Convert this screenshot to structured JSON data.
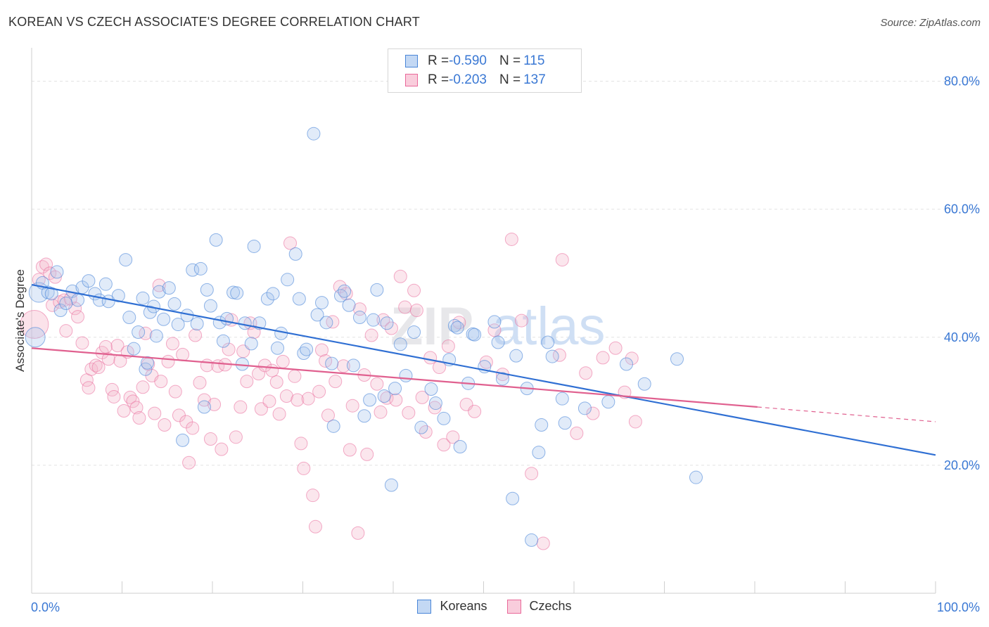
{
  "header": {
    "title": "KOREAN VS CZECH ASSOCIATE'S DEGREE CORRELATION CHART",
    "source": "Source: ZipAtlas.com"
  },
  "colors": {
    "korean": "#4a86d8",
    "korean_fill": "#a9c6ee",
    "czech": "#e9699a",
    "czech_fill": "#f4b6cb",
    "tick": "#3a78d4"
  },
  "legend": {
    "rows": [
      {
        "r_label": "R = ",
        "r_value": "-0.590",
        "n_label": "N = ",
        "n_value": "115"
      },
      {
        "r_label": "R = ",
        "r_value": "-0.203",
        "n_label": "N = ",
        "n_value": "137"
      }
    ]
  },
  "bottom_legend": {
    "koreans": "Koreans",
    "czechs": "Czechs"
  },
  "watermark": {
    "zip": "ZIP",
    "atlas": "atlas"
  },
  "chart_data": {
    "type": "scatter",
    "xlabel": "",
    "ylabel": "Associate's Degree",
    "xlim": [
      0,
      100
    ],
    "ylim": [
      0,
      85
    ],
    "x_tick_labels": [
      "0.0%",
      "100.0%"
    ],
    "y_ticks": [
      20,
      40,
      60,
      80
    ],
    "y_tick_labels": [
      "20.0%",
      "40.0%",
      "60.0%",
      "80.0%"
    ],
    "grid": true,
    "series": [
      {
        "name": "Koreans",
        "trend": {
          "x": [
            0,
            100
          ],
          "y": [
            48.2,
            21.6
          ]
        },
        "points": [
          [
            0.4,
            40
          ],
          [
            0.8,
            47
          ],
          [
            1.2,
            48.5
          ],
          [
            1.8,
            47
          ],
          [
            2.2,
            46.8
          ],
          [
            2.8,
            50.2
          ],
          [
            3.2,
            44.2
          ],
          [
            3.8,
            45.3
          ],
          [
            4.5,
            47.2
          ],
          [
            5.1,
            45.8
          ],
          [
            5.6,
            47.8
          ],
          [
            6.3,
            48.8
          ],
          [
            7,
            46.8
          ],
          [
            7.5,
            45.8
          ],
          [
            8.2,
            48.3
          ],
          [
            8.5,
            45.6
          ],
          [
            9.6,
            46.5
          ],
          [
            10.4,
            52.1
          ],
          [
            10.8,
            43.1
          ],
          [
            11.3,
            38.2
          ],
          [
            11.8,
            40.8
          ],
          [
            12.3,
            46.1
          ],
          [
            12.6,
            35
          ],
          [
            12.8,
            36
          ],
          [
            13.1,
            43.9
          ],
          [
            13.5,
            44.8
          ],
          [
            13.8,
            40.2
          ],
          [
            14.1,
            47.1
          ],
          [
            14.6,
            42.8
          ],
          [
            15.2,
            47.7
          ],
          [
            15.8,
            45.2
          ],
          [
            16.2,
            42
          ],
          [
            16.7,
            23.9
          ],
          [
            17.2,
            43.4
          ],
          [
            17.8,
            50.5
          ],
          [
            18.3,
            42.1
          ],
          [
            18.7,
            50.7
          ],
          [
            19.1,
            29.1
          ],
          [
            19.4,
            47.4
          ],
          [
            19.8,
            44.9
          ],
          [
            20.4,
            55.2
          ],
          [
            20.8,
            42.3
          ],
          [
            21.2,
            39.4
          ],
          [
            21.6,
            42.9
          ],
          [
            22.3,
            47
          ],
          [
            22.7,
            46.9
          ],
          [
            23.3,
            35.8
          ],
          [
            23.6,
            42.2
          ],
          [
            24.3,
            39
          ],
          [
            24.6,
            54.2
          ],
          [
            25.2,
            42.2
          ],
          [
            26.1,
            46
          ],
          [
            26.7,
            46.8
          ],
          [
            27.2,
            38.3
          ],
          [
            27.6,
            40.6
          ],
          [
            28.3,
            49
          ],
          [
            29.2,
            53
          ],
          [
            29.6,
            46
          ],
          [
            30.1,
            37.5
          ],
          [
            30.4,
            38.1
          ],
          [
            31.2,
            71.8
          ],
          [
            31.6,
            43.5
          ],
          [
            32.1,
            45.4
          ],
          [
            32.6,
            42.3
          ],
          [
            33.2,
            35.9
          ],
          [
            33.4,
            26.1
          ],
          [
            34.2,
            46.5
          ],
          [
            34.6,
            47.2
          ],
          [
            35.1,
            45
          ],
          [
            35.6,
            35.6
          ],
          [
            36.3,
            43.1
          ],
          [
            36.8,
            27.7
          ],
          [
            37.4,
            30.2
          ],
          [
            37.8,
            42.7
          ],
          [
            38.2,
            47.4
          ],
          [
            39,
            30.8
          ],
          [
            39.3,
            42.2
          ],
          [
            39.8,
            16.9
          ],
          [
            40.2,
            32
          ],
          [
            40.8,
            38.9
          ],
          [
            41.4,
            34
          ],
          [
            42.3,
            40.8
          ],
          [
            43.1,
            25.9
          ],
          [
            44.2,
            31.9
          ],
          [
            44.7,
            29.7
          ],
          [
            45.6,
            27.3
          ],
          [
            46.2,
            36.5
          ],
          [
            46.8,
            41.8
          ],
          [
            47.1,
            41.5
          ],
          [
            47.4,
            22.9
          ],
          [
            48.3,
            32.8
          ],
          [
            48.8,
            40.5
          ],
          [
            49,
            40.4
          ],
          [
            50.1,
            35.4
          ],
          [
            51.2,
            42.4
          ],
          [
            51.6,
            39.2
          ],
          [
            52.1,
            33.5
          ],
          [
            53.2,
            14.8
          ],
          [
            53.6,
            37.1
          ],
          [
            54.8,
            32
          ],
          [
            55.3,
            8.3
          ],
          [
            56.1,
            22
          ],
          [
            56.4,
            26.3
          ],
          [
            57.1,
            39.2
          ],
          [
            57.6,
            37
          ],
          [
            58.7,
            30.4
          ],
          [
            59,
            26.6
          ],
          [
            61.2,
            28.9
          ],
          [
            63.8,
            29.9
          ],
          [
            65.8,
            35.8
          ],
          [
            67.8,
            32.7
          ],
          [
            71.4,
            36.6
          ],
          [
            73.5,
            18.1
          ]
        ]
      },
      {
        "name": "Czechs",
        "trend": {
          "x": [
            0,
            80.3
          ],
          "y": [
            38.3,
            29.1
          ]
        },
        "trend_dashed": {
          "x": [
            80.3,
            100
          ],
          "y": [
            29.1,
            26.8
          ]
        },
        "points": [
          [
            0.3,
            42
          ],
          [
            0.8,
            49
          ],
          [
            1.2,
            51
          ],
          [
            1.6,
            51.4
          ],
          [
            2,
            50
          ],
          [
            2.3,
            45
          ],
          [
            2.6,
            49.4
          ],
          [
            3.1,
            45.5
          ],
          [
            3.6,
            45.8
          ],
          [
            3.8,
            41
          ],
          [
            4.3,
            46
          ],
          [
            4.8,
            44.5
          ],
          [
            5.1,
            43.2
          ],
          [
            5.6,
            39.1
          ],
          [
            6.1,
            33.3
          ],
          [
            6.3,
            32.1
          ],
          [
            6.6,
            35
          ],
          [
            7.1,
            35.6
          ],
          [
            7.4,
            35.3
          ],
          [
            7.8,
            37.6
          ],
          [
            8.2,
            38.5
          ],
          [
            8.5,
            36.6
          ],
          [
            8.9,
            31.8
          ],
          [
            9.1,
            30.7
          ],
          [
            9.5,
            38.7
          ],
          [
            9.8,
            36.3
          ],
          [
            10.2,
            28.5
          ],
          [
            10.6,
            37.7
          ],
          [
            10.9,
            30.6
          ],
          [
            11.2,
            30
          ],
          [
            11.6,
            29
          ],
          [
            11.9,
            27.4
          ],
          [
            12.3,
            32.2
          ],
          [
            12.6,
            40.6
          ],
          [
            12.9,
            35.8
          ],
          [
            13.3,
            34
          ],
          [
            13.6,
            28.1
          ],
          [
            14.1,
            48.1
          ],
          [
            14.3,
            33.1
          ],
          [
            14.7,
            26.3
          ],
          [
            15.1,
            36.2
          ],
          [
            15.6,
            39
          ],
          [
            15.9,
            31.5
          ],
          [
            16.3,
            27.8
          ],
          [
            16.7,
            37.3
          ],
          [
            17.1,
            26.8
          ],
          [
            17.4,
            20.4
          ],
          [
            17.8,
            25.8
          ],
          [
            18.1,
            40.3
          ],
          [
            18.6,
            32.9
          ],
          [
            19.1,
            30.2
          ],
          [
            19.4,
            35.6
          ],
          [
            19.8,
            24.1
          ],
          [
            20.2,
            29.5
          ],
          [
            20.6,
            35.5
          ],
          [
            21,
            22.5
          ],
          [
            21.4,
            35.7
          ],
          [
            21.8,
            38.1
          ],
          [
            22.1,
            42.7
          ],
          [
            22.6,
            24.4
          ],
          [
            23.1,
            29.1
          ],
          [
            23.4,
            37.8
          ],
          [
            23.8,
            33.1
          ],
          [
            24.2,
            42.2
          ],
          [
            24.6,
            40.8
          ],
          [
            25.1,
            34.3
          ],
          [
            25.4,
            28.8
          ],
          [
            25.8,
            35.6
          ],
          [
            26.3,
            30
          ],
          [
            26.6,
            34.8
          ],
          [
            27.1,
            33
          ],
          [
            27.4,
            28
          ],
          [
            27.8,
            36.2
          ],
          [
            28.2,
            30.8
          ],
          [
            28.6,
            54.7
          ],
          [
            29.1,
            33.9
          ],
          [
            29.4,
            30.2
          ],
          [
            29.8,
            23.4
          ],
          [
            30.1,
            19.5
          ],
          [
            30.6,
            30.4
          ],
          [
            31.1,
            15.3
          ],
          [
            31.4,
            10.4
          ],
          [
            31.8,
            31.5
          ],
          [
            32.1,
            38
          ],
          [
            32.5,
            36.3
          ],
          [
            32.8,
            27.8
          ],
          [
            33.3,
            42.4
          ],
          [
            33.6,
            33.1
          ],
          [
            34.1,
            47.9
          ],
          [
            34.5,
            35.5
          ],
          [
            34.8,
            46.8
          ],
          [
            35.2,
            22.4
          ],
          [
            35.5,
            29.3
          ],
          [
            36.1,
            9.4
          ],
          [
            36.3,
            44.4
          ],
          [
            36.8,
            34.1
          ],
          [
            37.1,
            21.7
          ],
          [
            37.6,
            40.3
          ],
          [
            38.2,
            32.7
          ],
          [
            38.6,
            28.3
          ],
          [
            38.9,
            42.7
          ],
          [
            39.3,
            30.5
          ],
          [
            39.8,
            41.4
          ],
          [
            40.3,
            30.2
          ],
          [
            40.8,
            49.5
          ],
          [
            41.3,
            44.7
          ],
          [
            41.7,
            28.2
          ],
          [
            42.3,
            47.3
          ],
          [
            42.6,
            44.2
          ],
          [
            43.2,
            30.6
          ],
          [
            43.6,
            25.2
          ],
          [
            44.1,
            36.8
          ],
          [
            44.6,
            29
          ],
          [
            45.1,
            35.3
          ],
          [
            45.6,
            23.2
          ],
          [
            46.1,
            38.6
          ],
          [
            46.6,
            24.4
          ],
          [
            47.3,
            42.3
          ],
          [
            48.1,
            29.5
          ],
          [
            49,
            28.4
          ],
          [
            50.3,
            36.1
          ],
          [
            51.2,
            41.1
          ],
          [
            52.1,
            34.2
          ],
          [
            53.1,
            55.3
          ],
          [
            54.2,
            42.6
          ],
          [
            55.3,
            18.7
          ],
          [
            56.6,
            7.8
          ],
          [
            58.4,
            37.2
          ],
          [
            58.7,
            52.1
          ],
          [
            60.3,
            25
          ],
          [
            61.3,
            34.4
          ],
          [
            62.1,
            28.1
          ],
          [
            63.2,
            36.8
          ],
          [
            64.6,
            38.3
          ],
          [
            65.6,
            31.4
          ],
          [
            66.4,
            36.7
          ],
          [
            66.8,
            26.8
          ]
        ]
      }
    ]
  }
}
